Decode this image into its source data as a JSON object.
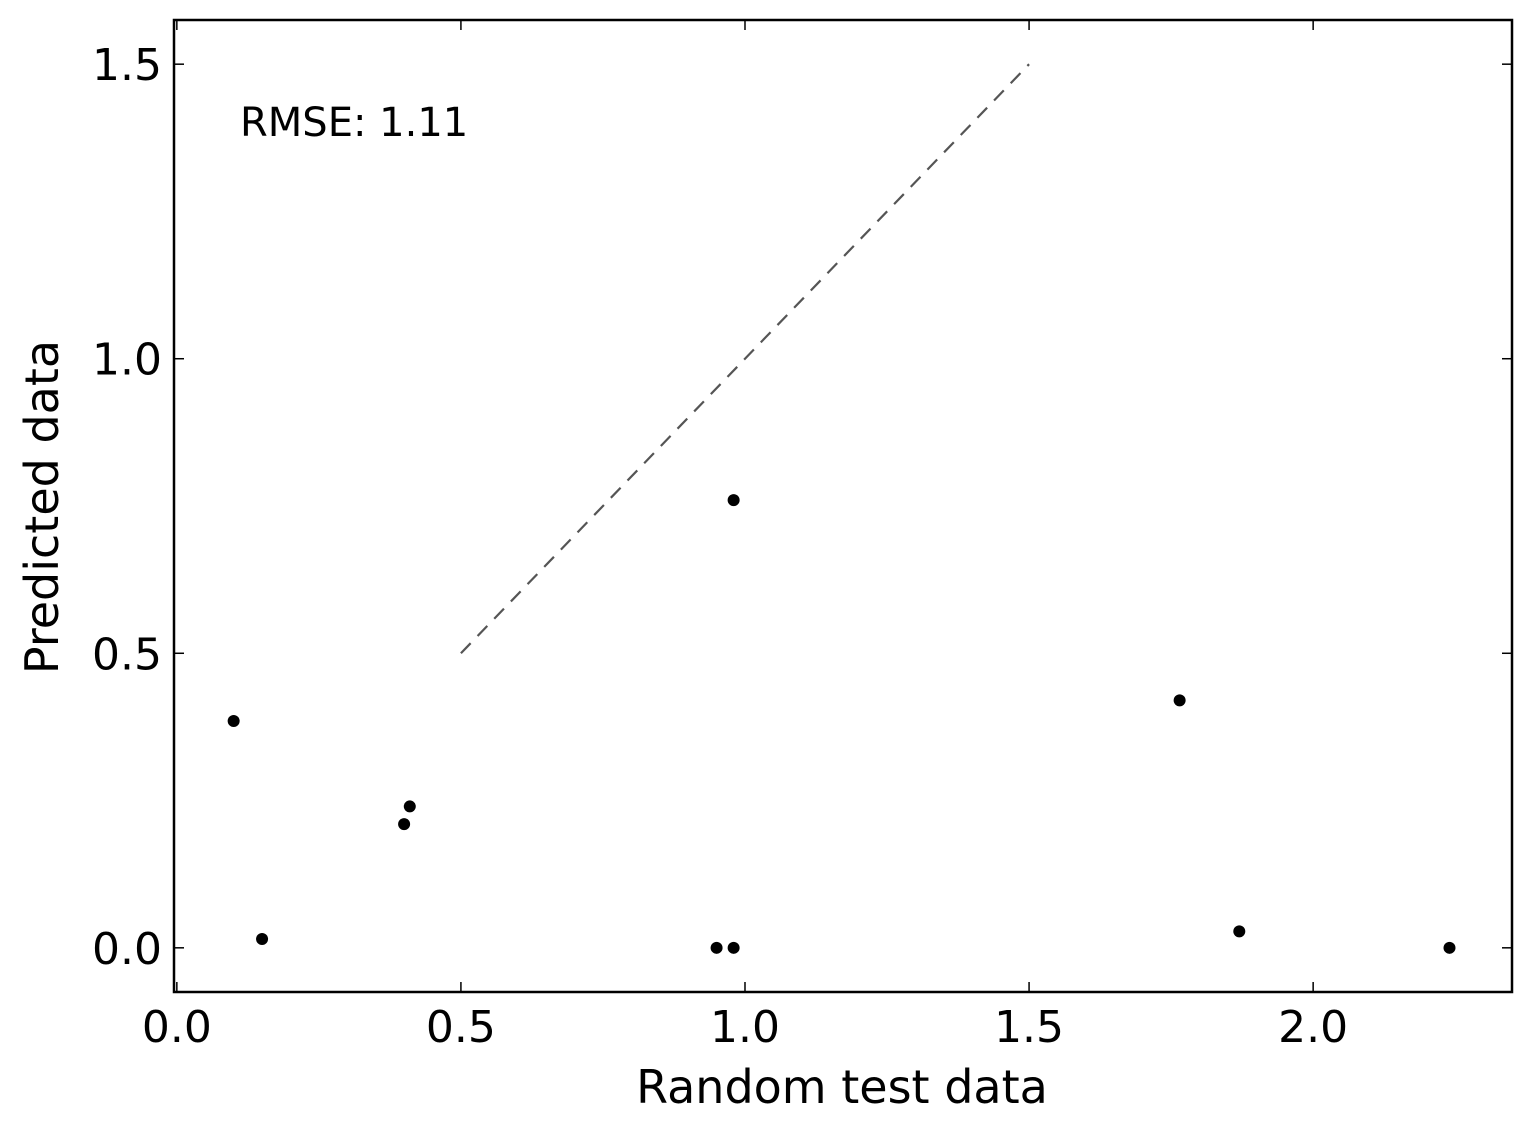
{
  "chart_data": {
    "type": "scatter",
    "xlabel": "Random test data",
    "ylabel": "Predicted data",
    "annotation": "RMSE: 1.11",
    "xlim": [
      -0.005,
      2.35
    ],
    "ylim": [
      -0.075,
      1.575
    ],
    "xticks": [
      {
        "value": 0.0,
        "label": "0.0"
      },
      {
        "value": 0.5,
        "label": "0.5"
      },
      {
        "value": 1.0,
        "label": "1.0"
      },
      {
        "value": 1.5,
        "label": "1.5"
      },
      {
        "value": 2.0,
        "label": "2.0"
      }
    ],
    "yticks": [
      {
        "value": 0.0,
        "label": "0.0"
      },
      {
        "value": 0.5,
        "label": "0.5"
      },
      {
        "value": 1.0,
        "label": "1.0"
      },
      {
        "value": 1.5,
        "label": "1.5"
      }
    ],
    "grid": false,
    "reference_line": {
      "x": [
        0.5,
        1.5
      ],
      "y": [
        0.5,
        1.5
      ],
      "style": "dashed",
      "color": "#555555"
    },
    "points": [
      {
        "x": 0.1,
        "y": 0.385
      },
      {
        "x": 0.15,
        "y": 0.015
      },
      {
        "x": 0.4,
        "y": 0.21
      },
      {
        "x": 0.41,
        "y": 0.24
      },
      {
        "x": 0.95,
        "y": 0.0
      },
      {
        "x": 0.98,
        "y": 0.76
      },
      {
        "x": 0.98,
        "y": 0.0
      },
      {
        "x": 1.765,
        "y": 0.42
      },
      {
        "x": 1.87,
        "y": 0.028
      },
      {
        "x": 2.24,
        "y": 0.0
      }
    ],
    "marker_color": "#000000"
  }
}
